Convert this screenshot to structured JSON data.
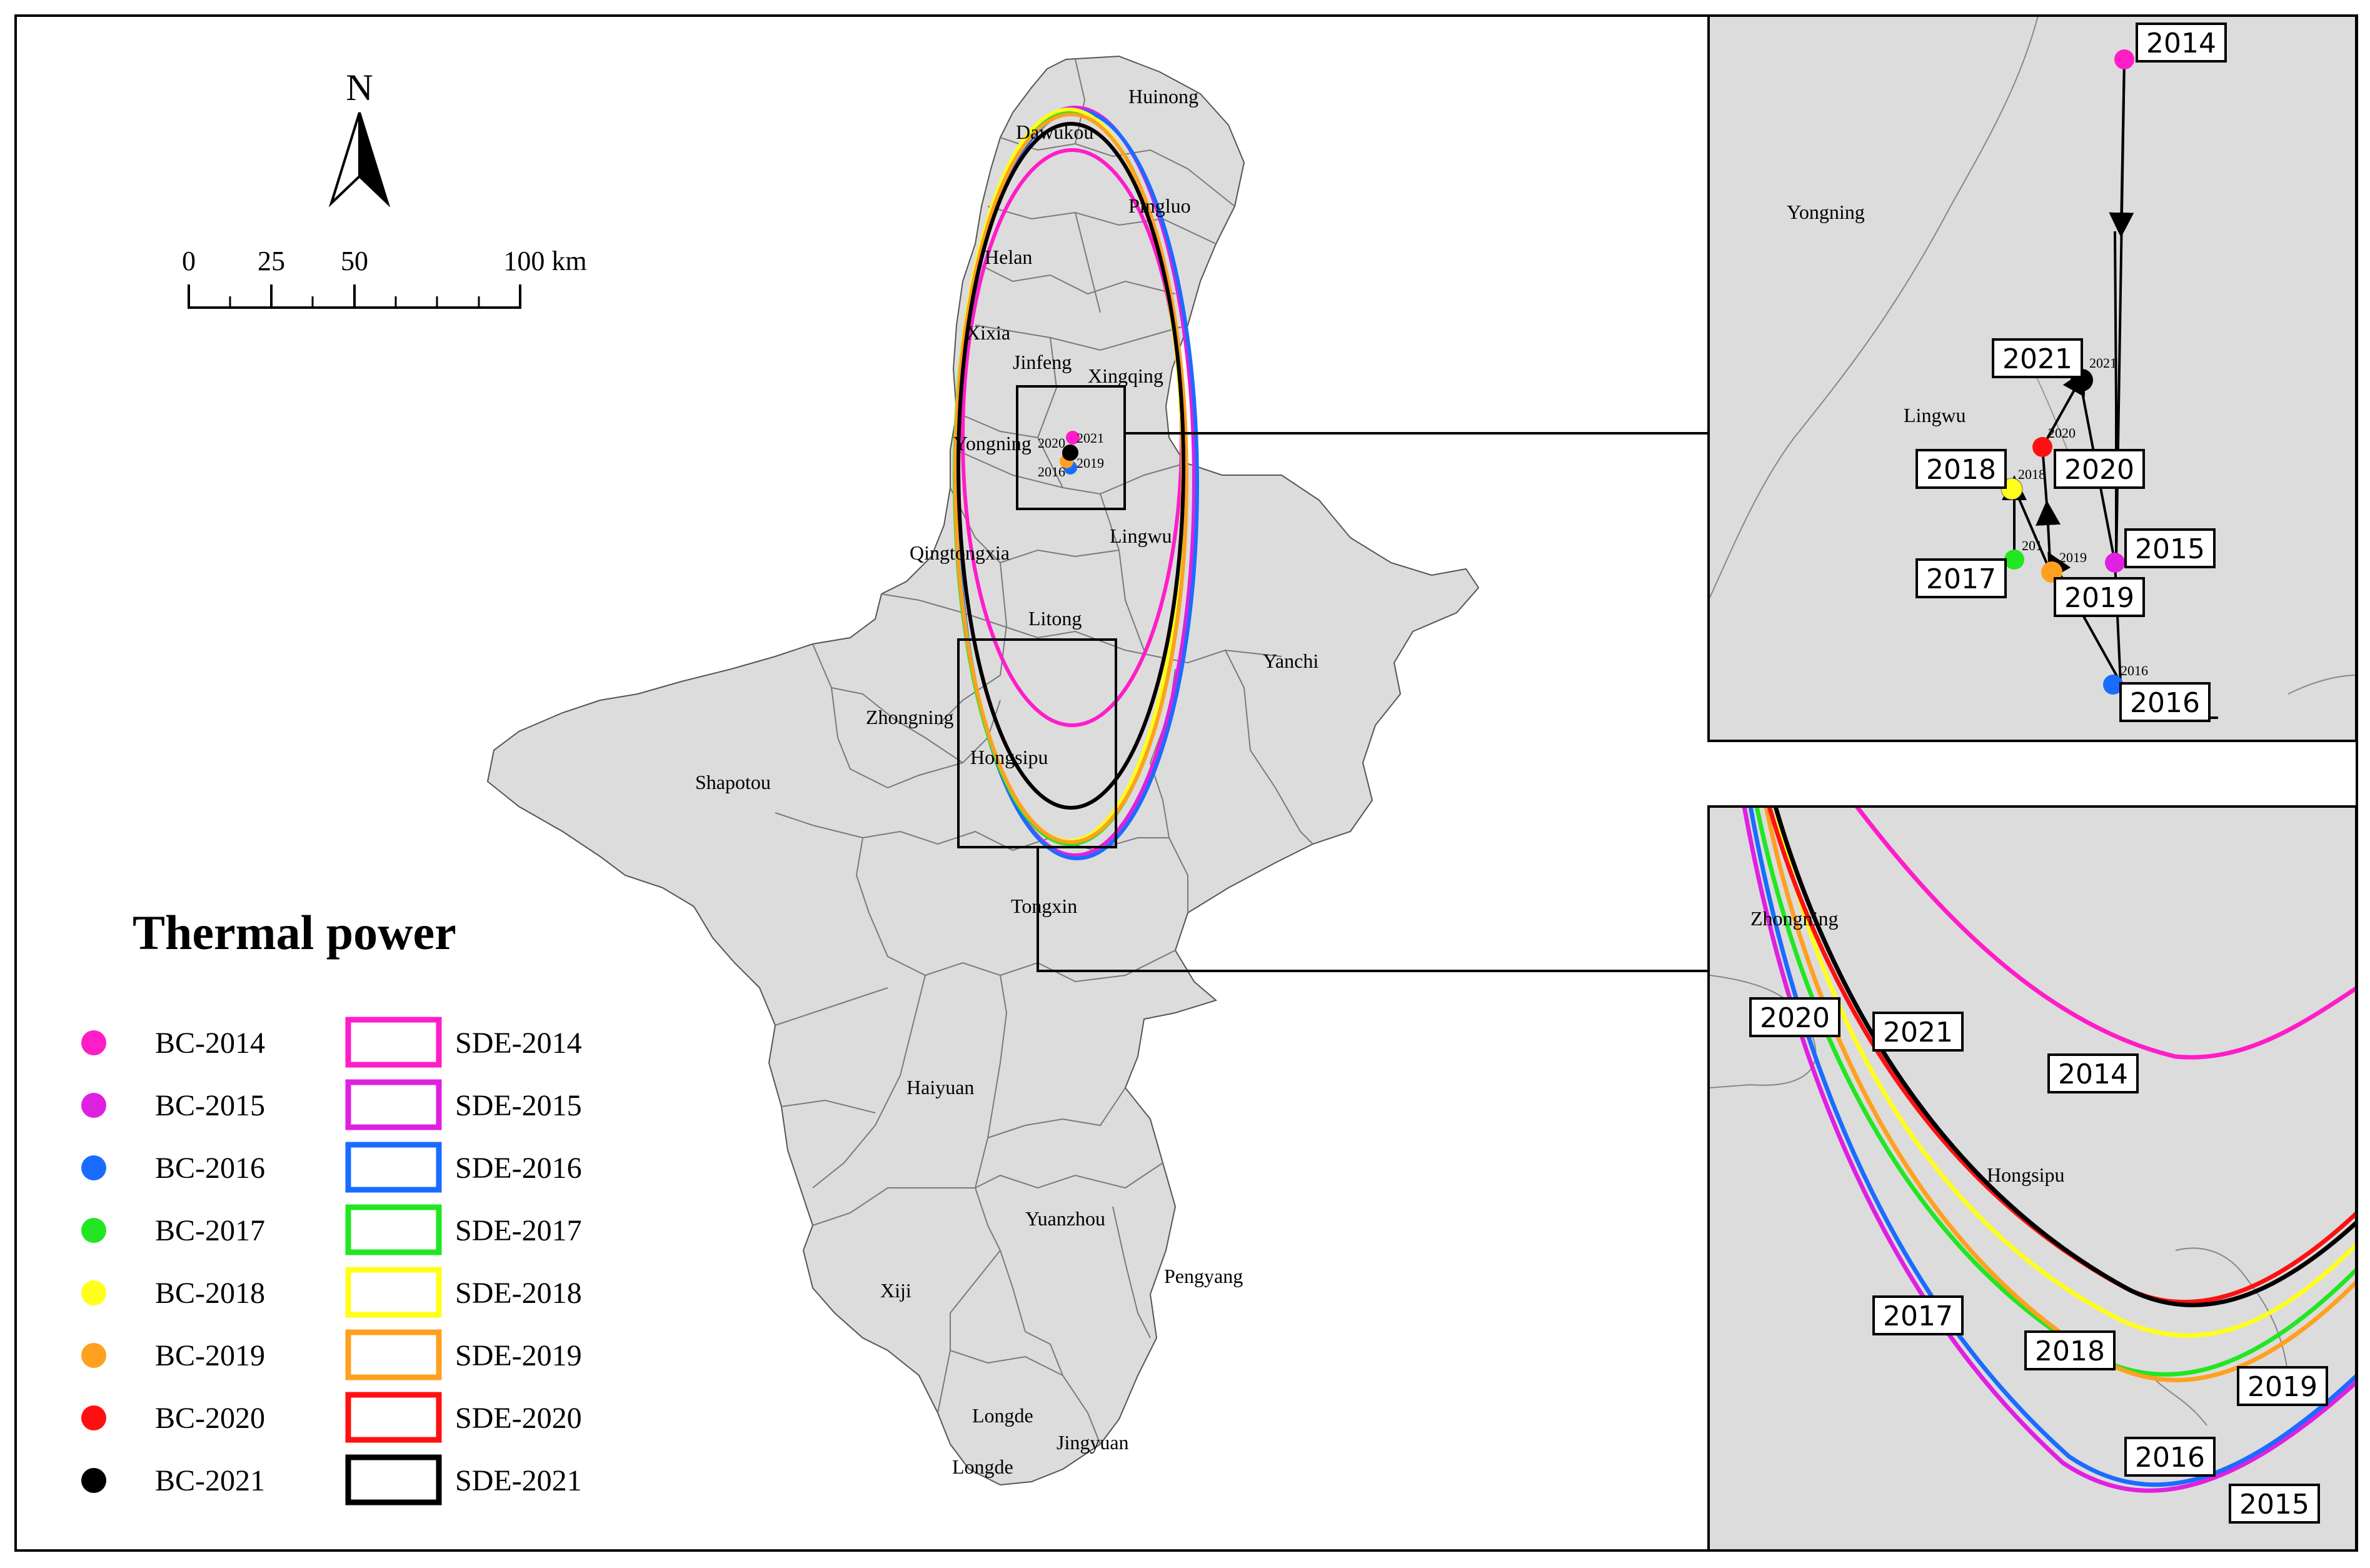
{
  "north": {
    "label": "N"
  },
  "scale_bar": {
    "ticks": [
      "0",
      "25",
      "50",
      "100 km"
    ]
  },
  "legend": {
    "title": "Thermal power",
    "items": [
      {
        "bc": "BC-2014",
        "sde": "SDE-2014",
        "color": "#FF1DC8"
      },
      {
        "bc": "BC-2015",
        "sde": "SDE-2015",
        "color": "#E020E0"
      },
      {
        "bc": "BC-2016",
        "sde": "SDE-2016",
        "color": "#1A6CFF"
      },
      {
        "bc": "BC-2017",
        "sde": "SDE-2017",
        "color": "#22E622"
      },
      {
        "bc": "BC-2018",
        "sde": "SDE-2018",
        "color": "#FFFF1A"
      },
      {
        "bc": "BC-2019",
        "sde": "SDE-2019",
        "color": "#FFA020"
      },
      {
        "bc": "BC-2020",
        "sde": "SDE-2020",
        "color": "#FF1010"
      },
      {
        "bc": "BC-2021",
        "sde": "SDE-2021",
        "color": "#000000"
      }
    ]
  },
  "main_map": {
    "place_labels": {
      "huinong": "Huinong",
      "dawukou": "Dawukou",
      "pingluo": "Pingluo",
      "helan": "Helan",
      "xixia": "Xixia",
      "jinfeng": "Jinfeng",
      "xingqing": "Xingqing",
      "yongning": "Yongning",
      "lingwu": "Lingwu",
      "qingtongxia": "Qingtongxia",
      "litong": "Litong",
      "yanchi": "Yanchi",
      "zhongning": "Zhongning",
      "hongsipu": "Hongsipu",
      "shapotou": "Shapotou",
      "tongxin": "Tongxin",
      "haiyuan": "Haiyuan",
      "yuanzhou": "Yuanzhou",
      "xiji": "Xiji",
      "pengyang": "Pengyang",
      "longde": "Longde",
      "jingyuan": "Jingyuan",
      "longde2": "Longde"
    },
    "center_year_labels": {
      "a": "2021",
      "b": "2020",
      "c": "2019",
      "d": "2016"
    }
  },
  "inset_top": {
    "place_labels": {
      "yongning": "Yongning",
      "lingwu": "Lingwu"
    },
    "year_boxes": {
      "y2014": "2014",
      "y2021": "2021",
      "y2018": "2018",
      "y2020": "2020",
      "y2015": "2015",
      "y2017": "2017",
      "y2019": "2019",
      "y2016": "2016"
    },
    "small_labels": {
      "s2021": "2021",
      "s2020": "2020",
      "s2018": "2018",
      "s2017": "201",
      "s2019": "2019",
      "s2016": "2016"
    }
  },
  "inset_bottom": {
    "place_labels": {
      "zhongning": "Zhongning",
      "hongsipu": "Hongsipu"
    },
    "year_boxes": {
      "y2020": "2020",
      "y2021": "2021",
      "y2014": "2014",
      "y2017": "2017",
      "y2018": "2018",
      "y2019": "2019",
      "y2016": "2016",
      "y2015": "2015"
    }
  }
}
